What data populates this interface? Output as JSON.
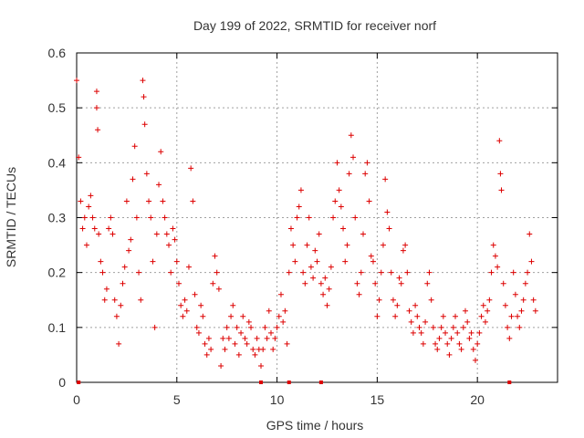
{
  "chart_data": {
    "type": "scatter",
    "title": "Day 199 of 2022, SRMTID for receiver norf",
    "xlabel": "GPS time / hours",
    "ylabel": "SRMTID / TECUs",
    "xlim": [
      0,
      24
    ],
    "ylim": [
      0,
      0.6
    ],
    "x_ticks": [
      0,
      5,
      10,
      15,
      20
    ],
    "y_ticks": [
      0,
      0.1,
      0.2,
      0.3,
      0.4,
      0.5,
      0.6
    ],
    "x_tick_labels": [
      "0",
      "5",
      "10",
      "15",
      "20"
    ],
    "y_tick_labels": [
      "0",
      "0.1",
      "0.2",
      "0.3",
      "0.4",
      "0.5",
      "0.6"
    ],
    "grid": true,
    "marker": "plus",
    "colors": {
      "points": "#dd0000",
      "grid": "#a0a0a0",
      "axis": "#000000"
    },
    "x_axis_marks": [
      0.1,
      9.2,
      10.6,
      12.2,
      21.6
    ],
    "series": [
      {
        "name": "SRMTID",
        "points": [
          [
            0.0,
            0.55
          ],
          [
            0.1,
            0.41
          ],
          [
            0.2,
            0.33
          ],
          [
            0.3,
            0.28
          ],
          [
            0.4,
            0.3
          ],
          [
            0.5,
            0.25
          ],
          [
            0.6,
            0.32
          ],
          [
            0.7,
            0.34
          ],
          [
            0.8,
            0.3
          ],
          [
            0.9,
            0.28
          ],
          [
            1.0,
            0.53
          ],
          [
            1.0,
            0.5
          ],
          [
            1.05,
            0.46
          ],
          [
            1.1,
            0.27
          ],
          [
            1.2,
            0.22
          ],
          [
            1.3,
            0.2
          ],
          [
            1.4,
            0.15
          ],
          [
            1.5,
            0.17
          ],
          [
            1.6,
            0.28
          ],
          [
            1.7,
            0.3
          ],
          [
            1.8,
            0.27
          ],
          [
            1.9,
            0.15
          ],
          [
            2.0,
            0.12
          ],
          [
            2.1,
            0.07
          ],
          [
            2.2,
            0.14
          ],
          [
            2.3,
            0.18
          ],
          [
            2.4,
            0.21
          ],
          [
            2.5,
            0.33
          ],
          [
            2.6,
            0.24
          ],
          [
            2.7,
            0.26
          ],
          [
            2.8,
            0.37
          ],
          [
            2.9,
            0.43
          ],
          [
            3.0,
            0.3
          ],
          [
            3.1,
            0.2
          ],
          [
            3.2,
            0.15
          ],
          [
            3.3,
            0.55
          ],
          [
            3.35,
            0.52
          ],
          [
            3.4,
            0.47
          ],
          [
            3.5,
            0.38
          ],
          [
            3.6,
            0.33
          ],
          [
            3.7,
            0.3
          ],
          [
            3.8,
            0.22
          ],
          [
            3.9,
            0.1
          ],
          [
            4.0,
            0.27
          ],
          [
            4.1,
            0.36
          ],
          [
            4.2,
            0.42
          ],
          [
            4.3,
            0.33
          ],
          [
            4.4,
            0.3
          ],
          [
            4.5,
            0.27
          ],
          [
            4.6,
            0.25
          ],
          [
            4.7,
            0.2
          ],
          [
            4.8,
            0.28
          ],
          [
            4.9,
            0.26
          ],
          [
            5.0,
            0.22
          ],
          [
            5.1,
            0.18
          ],
          [
            5.2,
            0.14
          ],
          [
            5.3,
            0.12
          ],
          [
            5.4,
            0.15
          ],
          [
            5.5,
            0.13
          ],
          [
            5.6,
            0.21
          ],
          [
            5.7,
            0.39
          ],
          [
            5.8,
            0.33
          ],
          [
            5.9,
            0.16
          ],
          [
            6.0,
            0.1
          ],
          [
            6.1,
            0.09
          ],
          [
            6.2,
            0.14
          ],
          [
            6.3,
            0.12
          ],
          [
            6.4,
            0.07
          ],
          [
            6.5,
            0.05
          ],
          [
            6.6,
            0.08
          ],
          [
            6.7,
            0.06
          ],
          [
            6.8,
            0.18
          ],
          [
            6.9,
            0.23
          ],
          [
            7.0,
            0.2
          ],
          [
            7.1,
            0.17
          ],
          [
            7.2,
            0.03
          ],
          [
            7.3,
            0.08
          ],
          [
            7.4,
            0.06
          ],
          [
            7.5,
            0.1
          ],
          [
            7.6,
            0.08
          ],
          [
            7.7,
            0.12
          ],
          [
            7.8,
            0.14
          ],
          [
            7.9,
            0.07
          ],
          [
            8.0,
            0.1
          ],
          [
            8.1,
            0.05
          ],
          [
            8.2,
            0.09
          ],
          [
            8.3,
            0.12
          ],
          [
            8.4,
            0.08
          ],
          [
            8.5,
            0.07
          ],
          [
            8.6,
            0.11
          ],
          [
            8.7,
            0.1
          ],
          [
            8.8,
            0.06
          ],
          [
            8.9,
            0.05
          ],
          [
            9.0,
            0.08
          ],
          [
            9.1,
            0.06
          ],
          [
            9.2,
            0.03
          ],
          [
            9.3,
            0.06
          ],
          [
            9.4,
            0.1
          ],
          [
            9.5,
            0.08
          ],
          [
            9.6,
            0.13
          ],
          [
            9.7,
            0.09
          ],
          [
            9.8,
            0.06
          ],
          [
            9.9,
            0.08
          ],
          [
            10.0,
            0.1
          ],
          [
            10.1,
            0.12
          ],
          [
            10.2,
            0.16
          ],
          [
            10.3,
            0.11
          ],
          [
            10.4,
            0.13
          ],
          [
            10.5,
            0.07
          ],
          [
            10.6,
            0.2
          ],
          [
            10.7,
            0.28
          ],
          [
            10.8,
            0.25
          ],
          [
            10.9,
            0.22
          ],
          [
            11.0,
            0.3
          ],
          [
            11.1,
            0.32
          ],
          [
            11.2,
            0.35
          ],
          [
            11.3,
            0.2
          ],
          [
            11.4,
            0.18
          ],
          [
            11.5,
            0.25
          ],
          [
            11.6,
            0.3
          ],
          [
            11.7,
            0.21
          ],
          [
            11.8,
            0.19
          ],
          [
            11.9,
            0.24
          ],
          [
            12.0,
            0.22
          ],
          [
            12.1,
            0.27
          ],
          [
            12.2,
            0.18
          ],
          [
            12.3,
            0.16
          ],
          [
            12.4,
            0.19
          ],
          [
            12.5,
            0.14
          ],
          [
            12.6,
            0.17
          ],
          [
            12.7,
            0.21
          ],
          [
            12.8,
            0.3
          ],
          [
            12.9,
            0.33
          ],
          [
            13.0,
            0.4
          ],
          [
            13.1,
            0.35
          ],
          [
            13.2,
            0.32
          ],
          [
            13.3,
            0.28
          ],
          [
            13.4,
            0.22
          ],
          [
            13.5,
            0.25
          ],
          [
            13.6,
            0.38
          ],
          [
            13.7,
            0.45
          ],
          [
            13.8,
            0.41
          ],
          [
            13.9,
            0.3
          ],
          [
            14.0,
            0.18
          ],
          [
            14.1,
            0.16
          ],
          [
            14.2,
            0.2
          ],
          [
            14.3,
            0.27
          ],
          [
            14.4,
            0.38
          ],
          [
            14.5,
            0.4
          ],
          [
            14.6,
            0.33
          ],
          [
            14.7,
            0.23
          ],
          [
            14.8,
            0.22
          ],
          [
            14.9,
            0.18
          ],
          [
            15.0,
            0.12
          ],
          [
            15.1,
            0.15
          ],
          [
            15.2,
            0.2
          ],
          [
            15.3,
            0.25
          ],
          [
            15.4,
            0.37
          ],
          [
            15.5,
            0.31
          ],
          [
            15.6,
            0.28
          ],
          [
            15.7,
            0.2
          ],
          [
            15.8,
            0.15
          ],
          [
            15.9,
            0.12
          ],
          [
            16.0,
            0.14
          ],
          [
            16.1,
            0.19
          ],
          [
            16.2,
            0.18
          ],
          [
            16.3,
            0.24
          ],
          [
            16.4,
            0.25
          ],
          [
            16.5,
            0.2
          ],
          [
            16.6,
            0.13
          ],
          [
            16.7,
            0.11
          ],
          [
            16.8,
            0.09
          ],
          [
            16.9,
            0.14
          ],
          [
            17.0,
            0.12
          ],
          [
            17.1,
            0.1
          ],
          [
            17.2,
            0.09
          ],
          [
            17.3,
            0.07
          ],
          [
            17.4,
            0.11
          ],
          [
            17.5,
            0.18
          ],
          [
            17.6,
            0.2
          ],
          [
            17.7,
            0.15
          ],
          [
            17.8,
            0.1
          ],
          [
            17.9,
            0.07
          ],
          [
            18.0,
            0.06
          ],
          [
            18.1,
            0.08
          ],
          [
            18.2,
            0.1
          ],
          [
            18.3,
            0.12
          ],
          [
            18.4,
            0.09
          ],
          [
            18.5,
            0.07
          ],
          [
            18.6,
            0.05
          ],
          [
            18.7,
            0.08
          ],
          [
            18.8,
            0.1
          ],
          [
            18.9,
            0.12
          ],
          [
            19.0,
            0.09
          ],
          [
            19.1,
            0.07
          ],
          [
            19.2,
            0.06
          ],
          [
            19.3,
            0.1
          ],
          [
            19.4,
            0.13
          ],
          [
            19.5,
            0.11
          ],
          [
            19.6,
            0.08
          ],
          [
            19.7,
            0.09
          ],
          [
            19.8,
            0.06
          ],
          [
            19.9,
            0.04
          ],
          [
            20.0,
            0.07
          ],
          [
            20.1,
            0.09
          ],
          [
            20.2,
            0.12
          ],
          [
            20.3,
            0.14
          ],
          [
            20.4,
            0.11
          ],
          [
            20.5,
            0.13
          ],
          [
            20.6,
            0.15
          ],
          [
            20.7,
            0.2
          ],
          [
            20.8,
            0.25
          ],
          [
            20.9,
            0.23
          ],
          [
            21.0,
            0.21
          ],
          [
            21.1,
            0.44
          ],
          [
            21.15,
            0.38
          ],
          [
            21.2,
            0.35
          ],
          [
            21.3,
            0.18
          ],
          [
            21.4,
            0.14
          ],
          [
            21.5,
            0.1
          ],
          [
            21.6,
            0.08
          ],
          [
            21.7,
            0.12
          ],
          [
            21.8,
            0.2
          ],
          [
            21.9,
            0.16
          ],
          [
            22.0,
            0.12
          ],
          [
            22.1,
            0.1
          ],
          [
            22.2,
            0.13
          ],
          [
            22.3,
            0.15
          ],
          [
            22.4,
            0.18
          ],
          [
            22.5,
            0.2
          ],
          [
            22.6,
            0.27
          ],
          [
            22.7,
            0.22
          ],
          [
            22.8,
            0.15
          ],
          [
            22.9,
            0.13
          ]
        ]
      }
    ]
  }
}
